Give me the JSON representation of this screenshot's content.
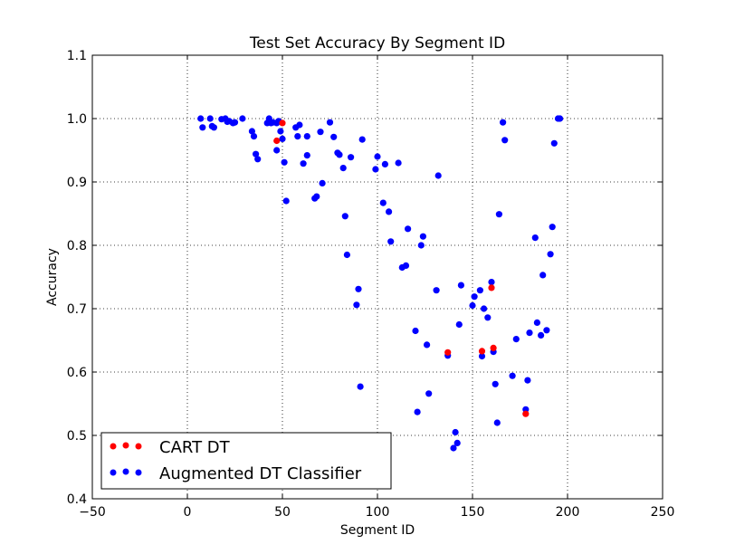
{
  "chart_data": {
    "type": "scatter",
    "title": "Test Set Accuracy By Segment ID",
    "xlabel": "Segment ID",
    "ylabel": "Accuracy",
    "xlim": [
      -50,
      250
    ],
    "ylim": [
      0.4,
      1.1
    ],
    "xticks": [
      -50,
      0,
      50,
      100,
      150,
      200,
      250
    ],
    "yticks": [
      0.4,
      0.5,
      0.6,
      0.7,
      0.8,
      0.9,
      1.0,
      1.1
    ],
    "xtick_labels": [
      "−50",
      "0",
      "50",
      "100",
      "150",
      "200",
      "250"
    ],
    "ytick_labels": [
      "0.4",
      "0.5",
      "0.6",
      "0.7",
      "0.8",
      "0.9",
      "1.0",
      "1.1"
    ],
    "grid": true,
    "legend_position": "bottom-left",
    "series": [
      {
        "name": "CART DT",
        "color": "#ff0000",
        "points": [
          [
            50,
            0.993
          ],
          [
            47,
            0.965
          ],
          [
            137,
            0.631
          ],
          [
            155,
            0.633
          ],
          [
            160,
            0.733
          ],
          [
            161,
            0.638
          ],
          [
            178,
            0.534
          ]
        ]
      },
      {
        "name": "Augmented DT Classifier",
        "color": "#0000ff",
        "points": [
          [
            7,
            1.0
          ],
          [
            12,
            1.0
          ],
          [
            18,
            0.999
          ],
          [
            20,
            1.0
          ],
          [
            29,
            1.0
          ],
          [
            43,
            1.0
          ],
          [
            8,
            0.986
          ],
          [
            13,
            0.988
          ],
          [
            14,
            0.986
          ],
          [
            21,
            0.995
          ],
          [
            22,
            0.996
          ],
          [
            24,
            0.993
          ],
          [
            25,
            0.994
          ],
          [
            42,
            0.993
          ],
          [
            44,
            0.993
          ],
          [
            45,
            0.994
          ],
          [
            47,
            0.993
          ],
          [
            48,
            0.996
          ],
          [
            34,
            0.98
          ],
          [
            35,
            0.972
          ],
          [
            36,
            0.944
          ],
          [
            37,
            0.936
          ],
          [
            47,
            0.95
          ],
          [
            49,
            0.98
          ],
          [
            50,
            0.968
          ],
          [
            51,
            0.931
          ],
          [
            52,
            0.87
          ],
          [
            57,
            0.986
          ],
          [
            59,
            0.99
          ],
          [
            58,
            0.972
          ],
          [
            63,
            0.972
          ],
          [
            61,
            0.929
          ],
          [
            63,
            0.942
          ],
          [
            67,
            0.874
          ],
          [
            68,
            0.877
          ],
          [
            70,
            0.979
          ],
          [
            71,
            0.898
          ],
          [
            75,
            0.994
          ],
          [
            77,
            0.971
          ],
          [
            79,
            0.946
          ],
          [
            80,
            0.943
          ],
          [
            82,
            0.922
          ],
          [
            83,
            0.846
          ],
          [
            84,
            0.785
          ],
          [
            86,
            0.939
          ],
          [
            89,
            0.706
          ],
          [
            90,
            0.731
          ],
          [
            91,
            0.577
          ],
          [
            92,
            0.967
          ],
          [
            99,
            0.92
          ],
          [
            100,
            0.94
          ],
          [
            103,
            0.867
          ],
          [
            104,
            0.928
          ],
          [
            106,
            0.853
          ],
          [
            107,
            0.806
          ],
          [
            111,
            0.93
          ],
          [
            113,
            0.765
          ],
          [
            115,
            0.768
          ],
          [
            116,
            0.826
          ],
          [
            120,
            0.665
          ],
          [
            121,
            0.537
          ],
          [
            123,
            0.8
          ],
          [
            124,
            0.814
          ],
          [
            126,
            0.643
          ],
          [
            127,
            0.566
          ],
          [
            131,
            0.729
          ],
          [
            132,
            0.91
          ],
          [
            137,
            0.626
          ],
          [
            140,
            0.48
          ],
          [
            141,
            0.505
          ],
          [
            142,
            0.488
          ],
          [
            143,
            0.675
          ],
          [
            144,
            0.737
          ],
          [
            150,
            0.705
          ],
          [
            151,
            0.719
          ],
          [
            154,
            0.729
          ],
          [
            155,
            0.625
          ],
          [
            156,
            0.7
          ],
          [
            158,
            0.686
          ],
          [
            160,
            0.742
          ],
          [
            161,
            0.632
          ],
          [
            162,
            0.581
          ],
          [
            163,
            0.52
          ],
          [
            164,
            0.849
          ],
          [
            166,
            0.994
          ],
          [
            167,
            0.966
          ],
          [
            171,
            0.594
          ],
          [
            173,
            0.652
          ],
          [
            178,
            0.541
          ],
          [
            179,
            0.587
          ],
          [
            180,
            0.662
          ],
          [
            183,
            0.812
          ],
          [
            184,
            0.678
          ],
          [
            186,
            0.658
          ],
          [
            187,
            0.753
          ],
          [
            189,
            0.666
          ],
          [
            191,
            0.786
          ],
          [
            192,
            0.829
          ],
          [
            193,
            0.961
          ],
          [
            195,
            1.0
          ],
          [
            196,
            1.0
          ]
        ]
      }
    ]
  }
}
